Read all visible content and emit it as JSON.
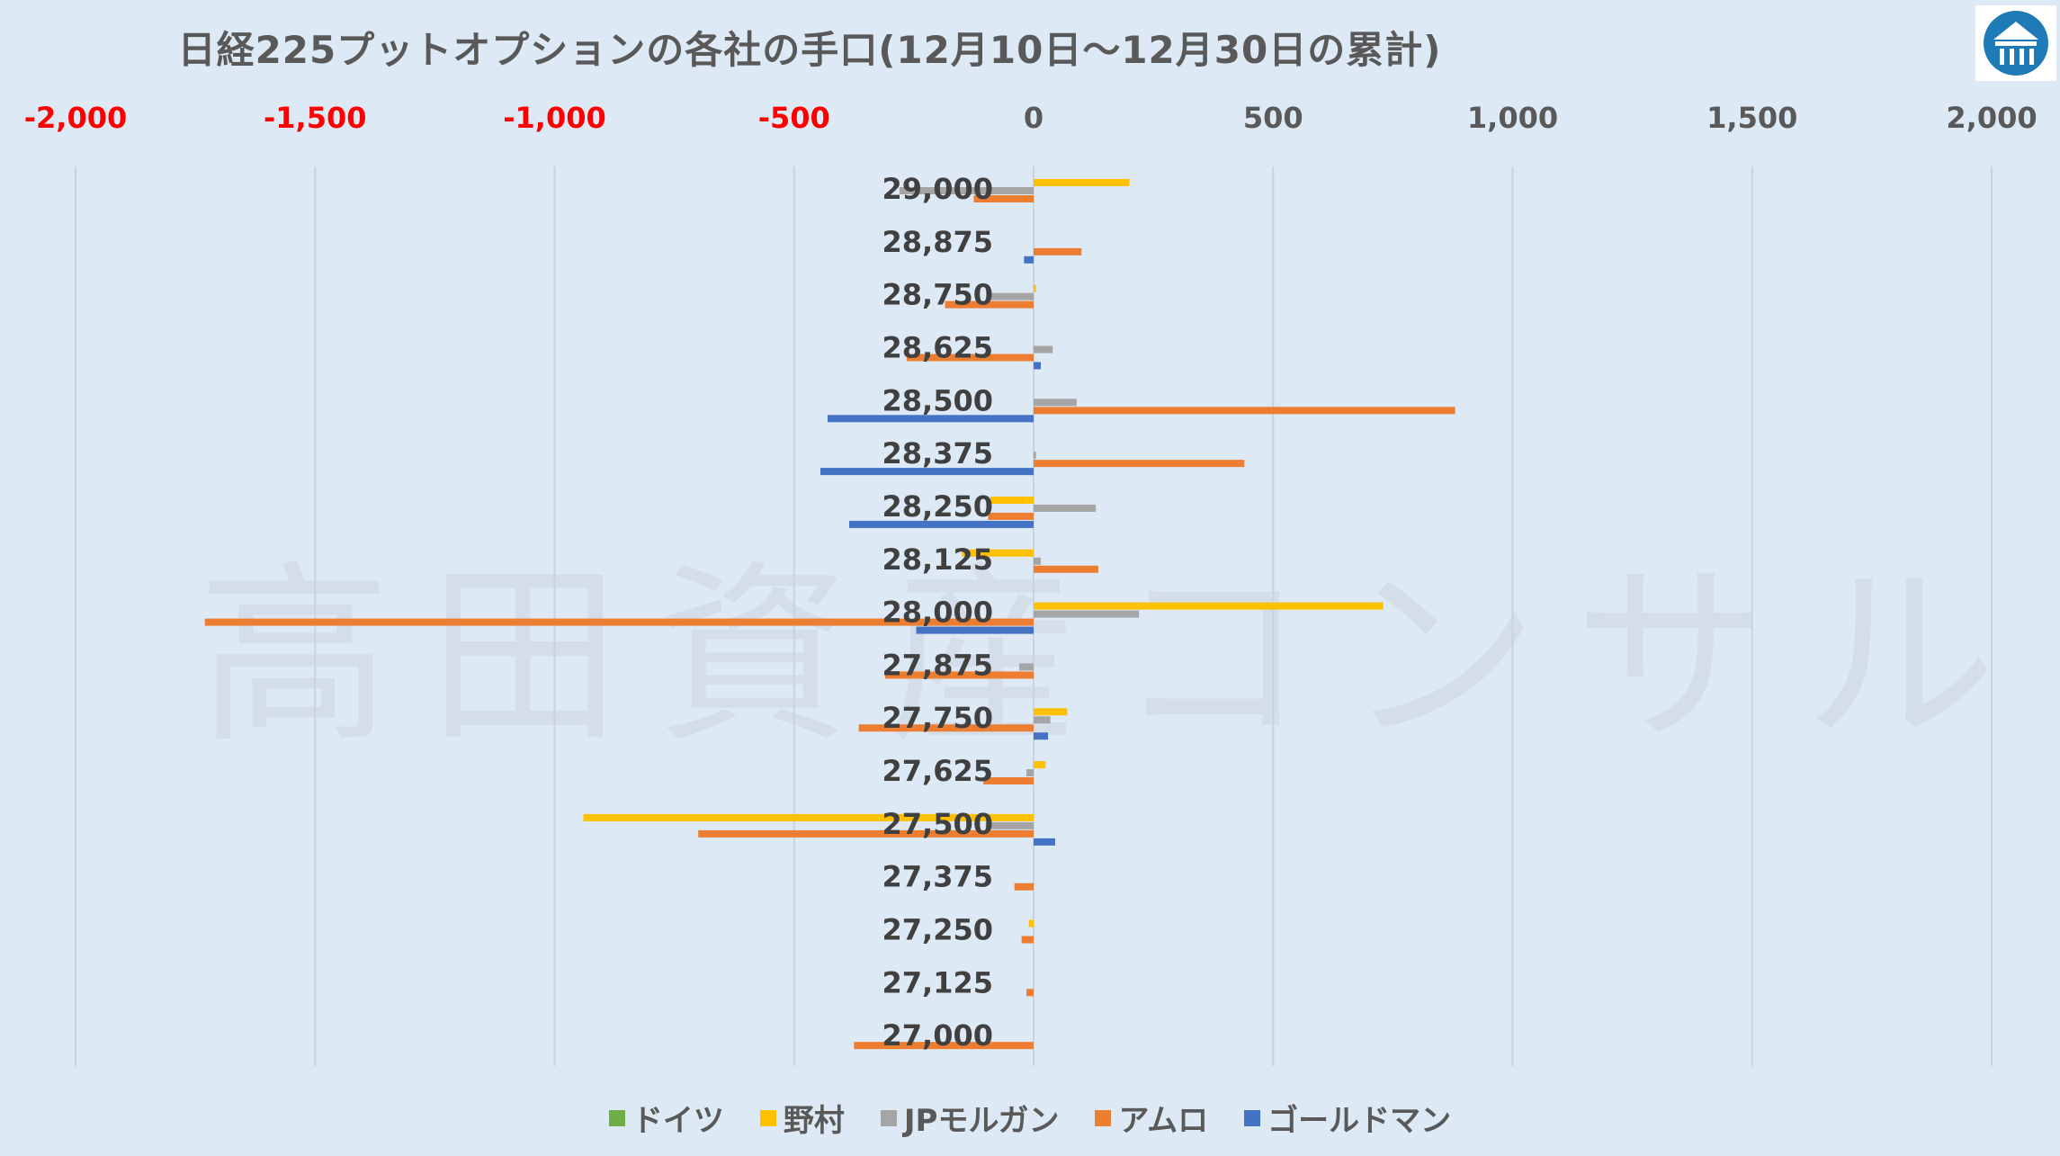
{
  "title": "日経225プットオプションの各社の手口(12月10日～12月30日の累計)",
  "watermark": "高田資産コンサル",
  "logo_icon": "building-logo-icon",
  "chart_data": {
    "type": "bar",
    "orientation": "horizontal",
    "x_ticks": [
      "-2,000",
      "-1,500",
      "-1,000",
      "-500",
      "0",
      "500",
      "1,000",
      "1,500",
      "2,000"
    ],
    "x_tick_values": [
      -2000,
      -1500,
      -1000,
      -500,
      0,
      500,
      1000,
      1500,
      2000
    ],
    "xlim": [
      -2000,
      2000
    ],
    "negative_tick_color": "#ff0000",
    "positive_tick_color": "#595959",
    "categories": [
      "29,000",
      "28,875",
      "28,750",
      "28,625",
      "28,500",
      "28,375",
      "28,250",
      "28,125",
      "28,000",
      "27,875",
      "27,750",
      "27,625",
      "27,500",
      "27,375",
      "27,250",
      "27,125",
      "27,000"
    ],
    "grid": "vertical",
    "legend_position": "bottom",
    "series": [
      {
        "name": "ドイツ",
        "color": "#70ad47",
        "values": [
          0,
          0,
          0,
          0,
          0,
          0,
          0,
          0,
          0,
          0,
          0,
          0,
          0,
          0,
          0,
          0,
          0
        ]
      },
      {
        "name": "野村",
        "color": "#ffc000",
        "values": [
          200,
          0,
          5,
          0,
          0,
          0,
          -90,
          -150,
          730,
          0,
          70,
          25,
          -940,
          0,
          -10,
          0,
          0
        ]
      },
      {
        "name": "JPモルガン",
        "color": "#a5a5a5",
        "values": [
          -280,
          0,
          -90,
          40,
          90,
          5,
          130,
          15,
          220,
          -30,
          35,
          -15,
          -100,
          0,
          0,
          0,
          0
        ]
      },
      {
        "name": "アムロ",
        "color": "#ed7d31",
        "values": [
          -125,
          100,
          -185,
          -265,
          880,
          440,
          -95,
          135,
          -1730,
          -310,
          -365,
          -105,
          -700,
          -40,
          -25,
          -15,
          -375
        ]
      },
      {
        "name": "ゴールドマン",
        "color": "#4472c4",
        "values": [
          0,
          -20,
          0,
          15,
          -430,
          -445,
          -385,
          0,
          -245,
          0,
          30,
          0,
          45,
          0,
          0,
          0,
          0
        ]
      }
    ]
  }
}
